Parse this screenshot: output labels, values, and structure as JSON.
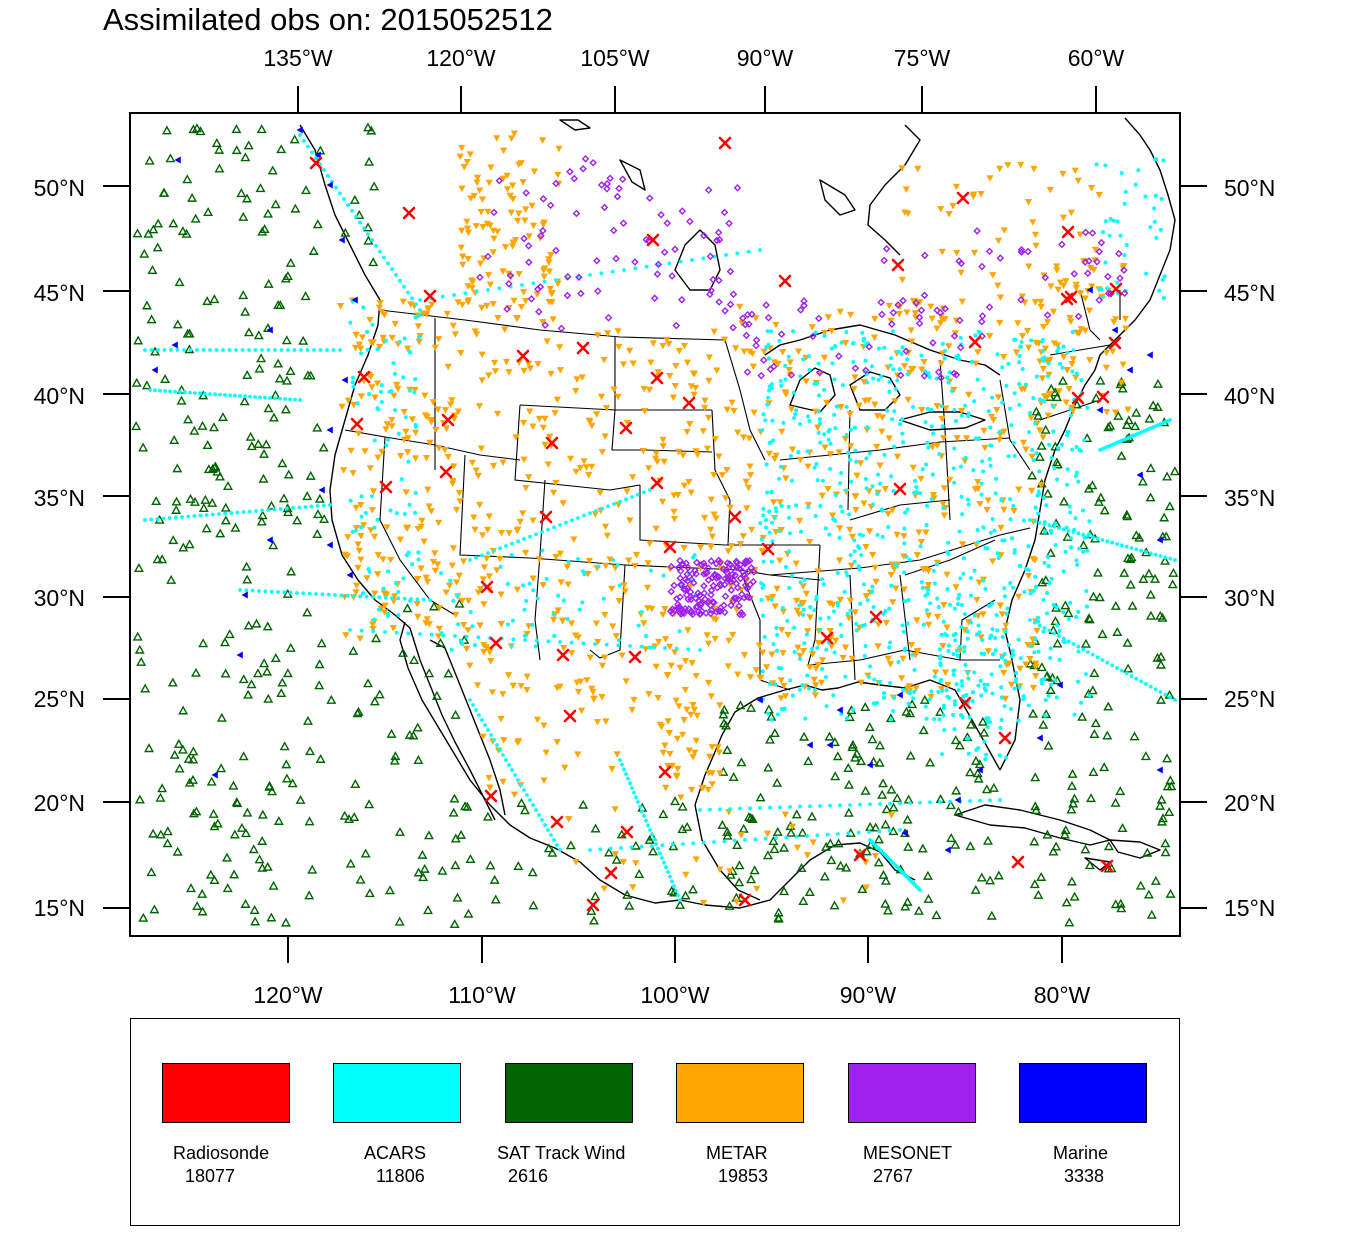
{
  "title": "Assimilated obs on: 2015052512",
  "top_lon_labels": [
    "135°W",
    "120°W",
    "105°W",
    "90°W",
    "75°W",
    "60°W"
  ],
  "bottom_lon_labels": [
    "120°W",
    "110°W",
    "100°W",
    "90°W",
    "80°W"
  ],
  "lat_labels": [
    "50°N",
    "45°N",
    "40°N",
    "35°N",
    "30°N",
    "25°N",
    "20°N",
    "15°N"
  ],
  "legend": [
    {
      "name": "Radiosonde",
      "count": "18077",
      "color": "#ff0000"
    },
    {
      "name": "ACARS",
      "count": "11806",
      "color": "#00ffff"
    },
    {
      "name": "SAT Track Wind",
      "count": "2616",
      "color": "#006400"
    },
    {
      "name": "METAR",
      "count": "19853",
      "color": "#ffa500"
    },
    {
      "name": "MESONET",
      "count": "2767",
      "color": "#a020f0"
    },
    {
      "name": "Marine",
      "count": "3338",
      "color": "#0000ff"
    }
  ],
  "symbols": {
    "radiosonde": "x-mark-icon",
    "acars": "dot-icon",
    "sat_track_wind": "open-triangle-icon",
    "metar": "down-triangle-icon",
    "mesonet": "diamond-icon",
    "marine": "left-triangle-icon"
  }
}
